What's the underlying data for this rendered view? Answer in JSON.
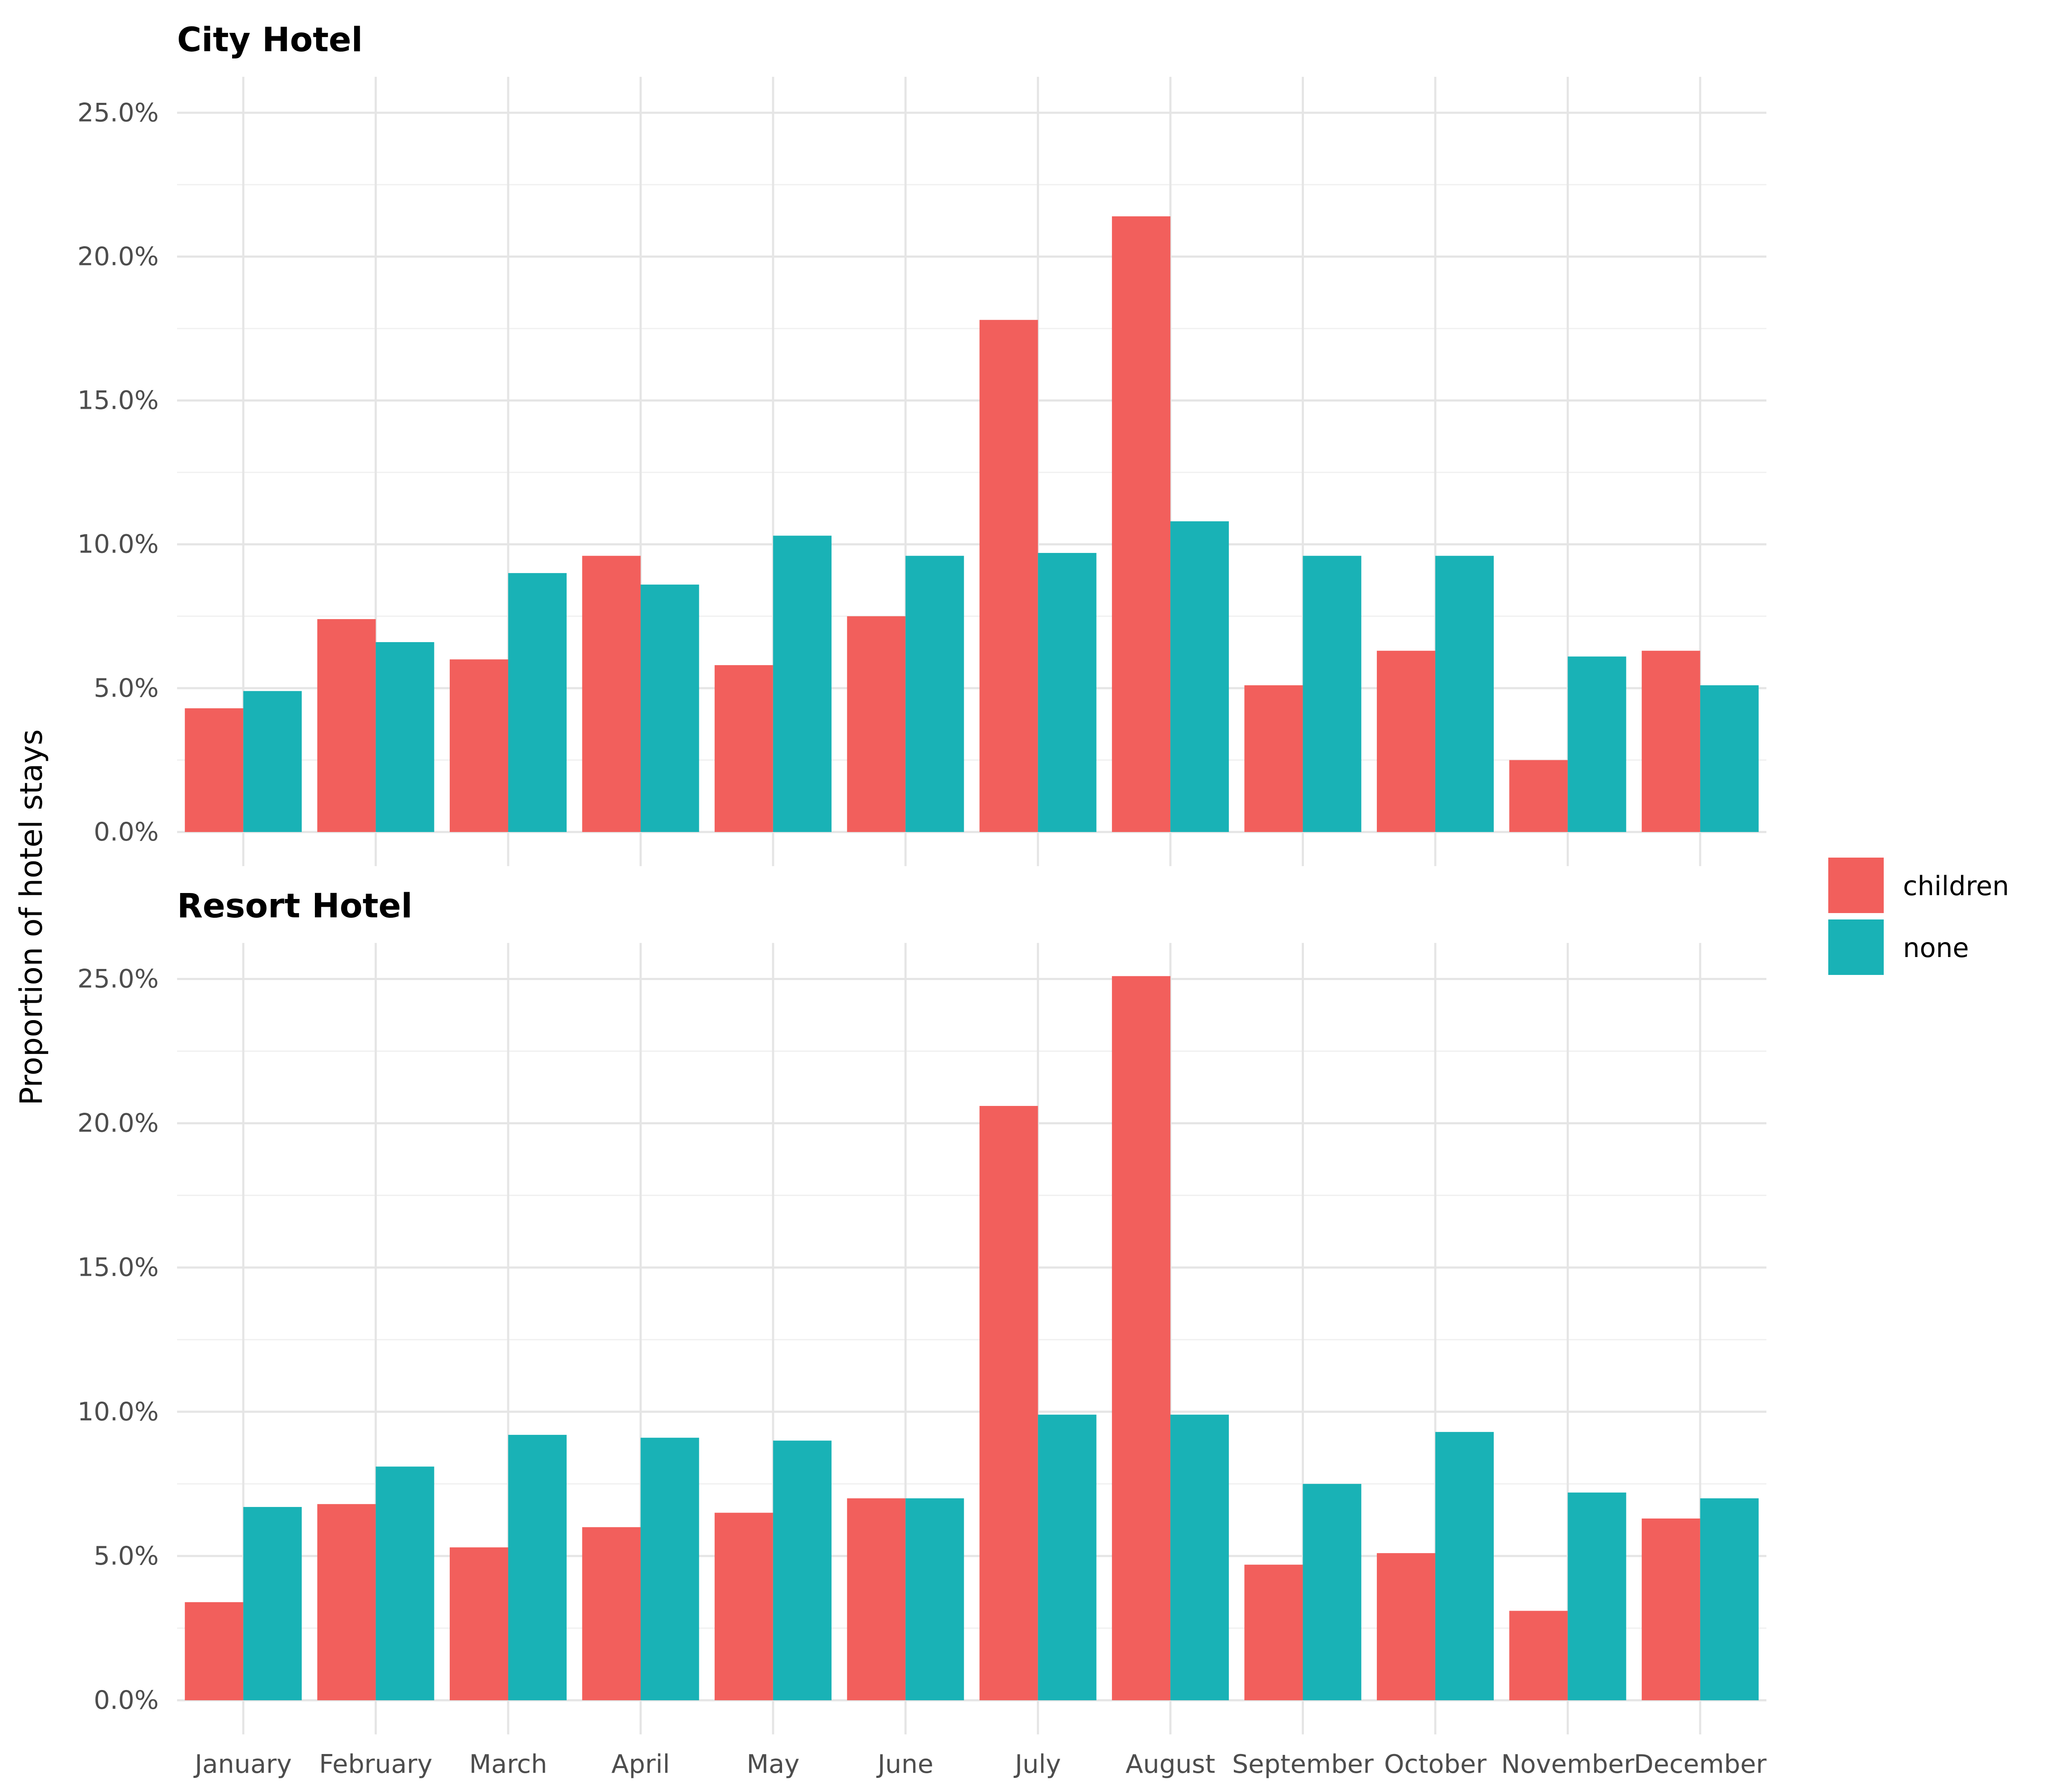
{
  "chart_data": [
    {
      "type": "bar",
      "title": "City Hotel",
      "categories": [
        "January",
        "February",
        "March",
        "April",
        "May",
        "June",
        "July",
        "August",
        "September",
        "October",
        "November",
        "December"
      ],
      "series": [
        {
          "name": "children",
          "values": [
            4.3,
            7.4,
            6.0,
            9.6,
            5.8,
            7.5,
            17.8,
            21.4,
            5.1,
            6.3,
            2.5,
            6.3
          ]
        },
        {
          "name": "none",
          "values": [
            4.9,
            6.6,
            9.0,
            8.6,
            10.3,
            9.6,
            9.7,
            10.8,
            9.6,
            9.6,
            6.1,
            5.1
          ]
        }
      ],
      "ylabel": "Proportion of hotel stays",
      "yticks": [
        "0.0%",
        "5.0%",
        "10.0%",
        "15.0%",
        "20.0%",
        "25.0%"
      ],
      "ylim": [
        0,
        26.25
      ]
    },
    {
      "type": "bar",
      "title": "Resort Hotel",
      "categories": [
        "January",
        "February",
        "March",
        "April",
        "May",
        "June",
        "July",
        "August",
        "September",
        "October",
        "November",
        "December"
      ],
      "series": [
        {
          "name": "children",
          "values": [
            3.4,
            6.8,
            5.3,
            6.0,
            6.5,
            7.0,
            20.6,
            25.1,
            4.7,
            5.1,
            3.1,
            6.3
          ]
        },
        {
          "name": "none",
          "values": [
            6.7,
            8.1,
            9.2,
            9.1,
            9.0,
            7.0,
            9.9,
            9.9,
            7.5,
            9.3,
            7.2,
            7.0
          ]
        }
      ],
      "ylabel": "Proportion of hotel stays",
      "yticks": [
        "0.0%",
        "5.0%",
        "10.0%",
        "15.0%",
        "20.0%",
        "25.0%"
      ],
      "ylim": [
        0,
        26.25
      ]
    }
  ],
  "axis": {
    "ylabel": "Proportion of hotel stays",
    "month_labels": [
      "January",
      "February",
      "March",
      "April",
      "May",
      "June",
      "July",
      "August",
      "September",
      "October",
      "November",
      "December"
    ]
  },
  "legend": {
    "position": "right",
    "items": [
      {
        "label": "children",
        "color": "#F25F5C"
      },
      {
        "label": "none",
        "color": "#19B2B6"
      }
    ]
  },
  "colors": {
    "children": "#F25F5C",
    "none": "#19B2B6",
    "grid_major": "#E5E5E5",
    "grid_minor": "#F0F0F0"
  }
}
